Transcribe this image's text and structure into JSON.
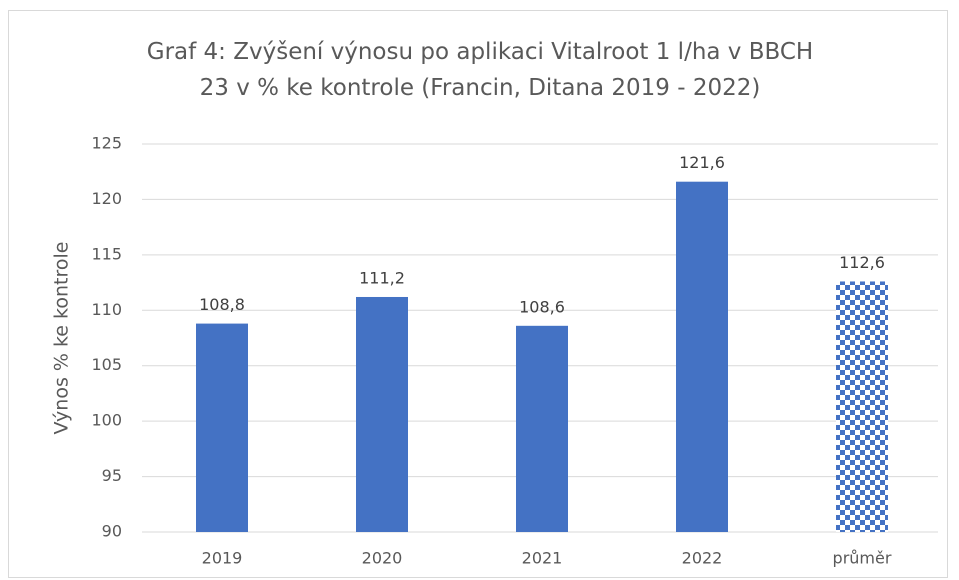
{
  "chart_data": {
    "type": "bar",
    "title": "Graf 4: Zvýšení výnosu po aplikaci Vitalroot 1 l/ha v BBCH 23 v % ke kontrole (Francin, Ditana 2019 - 2022)",
    "y_label": "Výnos % ke kontrole",
    "categories": [
      "2019",
      "2020",
      "2021",
      "2022",
      "průměr"
    ],
    "values": [
      108.8,
      111.2,
      108.6,
      121.6,
      112.6
    ],
    "value_labels": [
      "108,8",
      "111,2",
      "108,6",
      "121,6",
      "112,6"
    ],
    "color": "#4472c4",
    "patterned": [
      false,
      false,
      false,
      false,
      true
    ],
    "ylim": [
      90,
      125
    ],
    "yticks": [
      90,
      95,
      100,
      105,
      110,
      115,
      120,
      125
    ],
    "grid": true
  }
}
